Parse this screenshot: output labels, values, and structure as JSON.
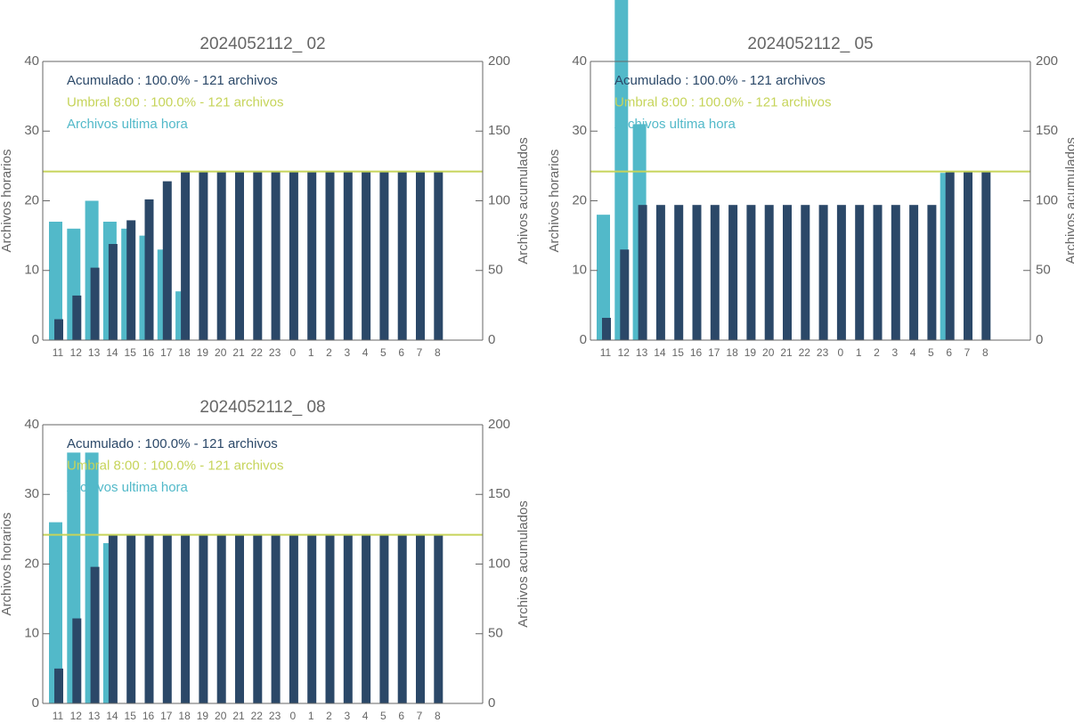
{
  "chart_data": [
    {
      "type": "bar",
      "title": "2024052112_ 02",
      "ylabel": "Archivos horarios",
      "y2label": "Archivos acumulados",
      "categories": [
        "11",
        "12",
        "13",
        "14",
        "15",
        "16",
        "17",
        "18",
        "19",
        "20",
        "21",
        "22",
        "23",
        "0",
        "1",
        "2",
        "3",
        "4",
        "5",
        "6",
        "7",
        "8"
      ],
      "series": [
        {
          "name": "Archivos ultima hora",
          "color": "#52b9c9",
          "values": [
            17,
            16,
            20,
            17,
            16,
            15,
            13,
            7,
            0,
            0,
            0,
            0,
            0,
            0,
            0,
            0,
            0,
            0,
            0,
            0,
            0,
            0
          ]
        },
        {
          "name": "Acumulado : 100.0% - 121 archivos",
          "color": "#2b4868",
          "axis": "y2",
          "values": [
            15,
            32,
            52,
            69,
            86,
            101,
            114,
            121,
            121,
            121,
            121,
            121,
            121,
            121,
            121,
            121,
            121,
            121,
            121,
            121,
            121,
            121
          ]
        }
      ],
      "threshold": {
        "label": "Umbral 8:00 : 100.0% - 121 archivos",
        "value": 121,
        "axis": "y2",
        "color": "#c6d45a"
      },
      "ylim": [
        0,
        40
      ],
      "yticks": [
        0,
        10,
        20,
        30,
        40
      ],
      "y2lim": [
        0,
        200
      ],
      "y2ticks": [
        0,
        50,
        100,
        150,
        200
      ]
    },
    {
      "type": "bar",
      "title": "2024052112_ 05",
      "ylabel": "Archivos horarios",
      "y2label": "Archivos acumulados",
      "categories": [
        "11",
        "12",
        "13",
        "14",
        "15",
        "16",
        "17",
        "18",
        "19",
        "20",
        "21",
        "22",
        "23",
        "0",
        "1",
        "2",
        "3",
        "4",
        "5",
        "6",
        "7",
        "8"
      ],
      "series": [
        {
          "name": "Archivos ultima hora",
          "color": "#52b9c9",
          "values": [
            18,
            49,
            31,
            0,
            0,
            0,
            0,
            0,
            0,
            0,
            0,
            0,
            0,
            0,
            0,
            0,
            0,
            0,
            0,
            24,
            0,
            0
          ]
        },
        {
          "name": "Acumulado : 100.0% - 121 archivos",
          "color": "#2b4868",
          "axis": "y2",
          "values": [
            16,
            65,
            97,
            97,
            97,
            97,
            97,
            97,
            97,
            97,
            97,
            97,
            97,
            97,
            97,
            97,
            97,
            97,
            97,
            121,
            121,
            121
          ]
        }
      ],
      "threshold": {
        "label": "Umbral 8:00 : 100.0% - 121 archivos",
        "value": 121,
        "axis": "y2",
        "color": "#c6d45a"
      },
      "ylim": [
        0,
        40
      ],
      "yticks": [
        0,
        10,
        20,
        30,
        40
      ],
      "y2lim": [
        0,
        200
      ],
      "y2ticks": [
        0,
        50,
        100,
        150,
        200
      ]
    },
    {
      "type": "bar",
      "title": "2024052112_ 08",
      "ylabel": "Archivos horarios",
      "y2label": "Archivos acumulados",
      "categories": [
        "11",
        "12",
        "13",
        "14",
        "15",
        "16",
        "17",
        "18",
        "19",
        "20",
        "21",
        "22",
        "23",
        "0",
        "1",
        "2",
        "3",
        "4",
        "5",
        "6",
        "7",
        "8"
      ],
      "series": [
        {
          "name": "Archivos ultima hora",
          "color": "#52b9c9",
          "values": [
            26,
            36,
            36,
            23,
            0,
            0,
            0,
            0,
            0,
            0,
            0,
            0,
            0,
            0,
            0,
            0,
            0,
            0,
            0,
            0,
            0,
            0
          ]
        },
        {
          "name": "Acumulado : 100.0% - 121 archivos",
          "color": "#2b4868",
          "axis": "y2",
          "values": [
            25,
            61,
            98,
            121,
            121,
            121,
            121,
            121,
            121,
            121,
            121,
            121,
            121,
            121,
            121,
            121,
            121,
            121,
            121,
            121,
            121,
            121
          ]
        }
      ],
      "threshold": {
        "label": "Umbral 8:00 : 100.0% - 121 archivos",
        "value": 121,
        "axis": "y2",
        "color": "#c6d45a"
      },
      "ylim": [
        0,
        40
      ],
      "yticks": [
        0,
        10,
        20,
        30,
        40
      ],
      "y2lim": [
        0,
        200
      ],
      "y2ticks": [
        0,
        50,
        100,
        150,
        200
      ]
    }
  ]
}
